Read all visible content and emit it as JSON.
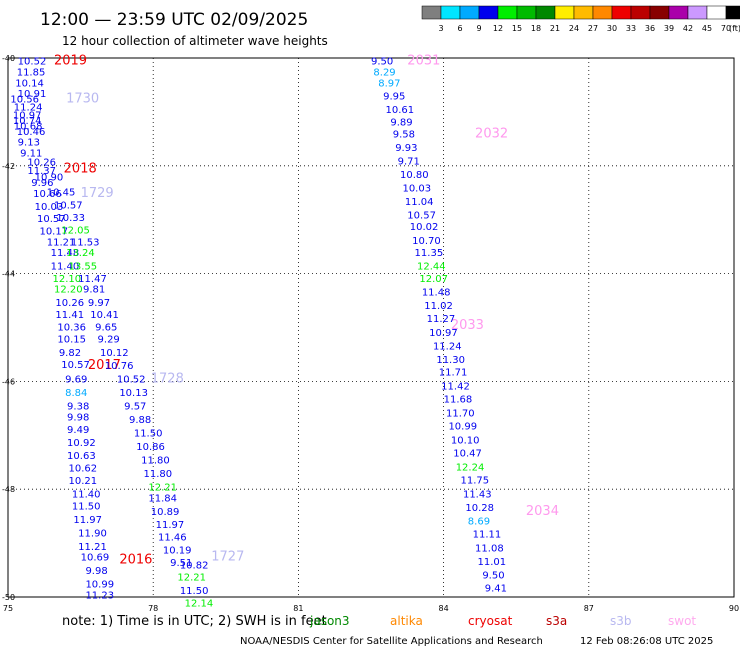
{
  "header": {
    "title": "12:00 — 23:59 UTC 02/09/2025",
    "subtitle": "12 hour collection of altimeter wave heights"
  },
  "colorbar": {
    "unit": "(ft)",
    "labels": [
      "3",
      "6",
      "9",
      "12",
      "15",
      "18",
      "21",
      "24",
      "27",
      "30",
      "33",
      "36",
      "39",
      "42",
      "45",
      "70"
    ],
    "colors": [
      "#7f7f7f",
      "#00e5ff",
      "#00aaff",
      "#0000ee",
      "#00ee00",
      "#00bb00",
      "#008800",
      "#ffee00",
      "#ffbb00",
      "#ff8800",
      "#ee0000",
      "#bb0000",
      "#880000",
      "#aa00aa",
      "#cc99ff",
      "#ffffff",
      "#000000"
    ]
  },
  "footer": {
    "note": "note:  1) Time is in UTC; 2) SWH is in feet",
    "satellites": [
      {
        "name": "jason3",
        "color": "#008800"
      },
      {
        "name": "altika",
        "color": "#ff8800"
      },
      {
        "name": "cryosat",
        "color": "#ee0000"
      },
      {
        "name": "s3a",
        "color": "#bb0000"
      },
      {
        "name": "s3b",
        "color": "#b8b8f0"
      },
      {
        "name": "swot",
        "color": "#ffaaee"
      }
    ],
    "credit": "NOAA/NESDIS Center for Satellite Applications and Research",
    "timestamp": "12 Feb 08:26:08 UTC 2025"
  },
  "chart_data": {
    "type": "scatter",
    "xlim": [
      75,
      90
    ],
    "ylim": [
      -50,
      -40
    ],
    "x_ticks": [
      75,
      78,
      81,
      84,
      87,
      90
    ],
    "y_ticks": [
      -40,
      -42,
      -44,
      -46,
      -48,
      -50
    ],
    "x_tick_labels": [
      "75",
      "78",
      "81",
      "84",
      "87",
      "90"
    ],
    "y_tick_labels": [
      "-40",
      "-42",
      "-44",
      "-46",
      "-48",
      "-50"
    ],
    "grid": true,
    "track_labels": [
      {
        "text": "2019",
        "x": 75.95,
        "y": -40.05,
        "color": "#ee0000"
      },
      {
        "text": "1730",
        "x": 76.2,
        "y": -40.75,
        "color": "#b8b8f0"
      },
      {
        "text": "2018",
        "x": 76.15,
        "y": -42.05,
        "color": "#ee0000"
      },
      {
        "text": "1729",
        "x": 76.5,
        "y": -42.5,
        "color": "#b8b8f0"
      },
      {
        "text": "2017",
        "x": 76.65,
        "y": -45.7,
        "color": "#ee0000"
      },
      {
        "text": "1728",
        "x": 77.95,
        "y": -45.95,
        "color": "#b8b8f0"
      },
      {
        "text": "2016",
        "x": 77.3,
        "y": -49.3,
        "color": "#ee0000"
      },
      {
        "text": "1727",
        "x": 79.2,
        "y": -49.25,
        "color": "#b8b8f0"
      },
      {
        "text": "2031",
        "x": 83.25,
        "y": -40.05,
        "color": "#ff99ee"
      },
      {
        "text": "2032",
        "x": 84.65,
        "y": -41.4,
        "color": "#ff99ee"
      },
      {
        "text": "2033",
        "x": 84.15,
        "y": -44.95,
        "color": "#ff99ee"
      },
      {
        "text": "2034",
        "x": 85.7,
        "y": -48.4,
        "color": "#ff99ee"
      }
    ],
    "points": [
      {
        "x": 75.2,
        "y": -40.05,
        "v": "10.52",
        "c": "#0000ee"
      },
      {
        "x": 75.18,
        "y": -40.25,
        "v": "11.85",
        "c": "#0000ee"
      },
      {
        "x": 75.15,
        "y": -40.45,
        "v": "10.14",
        "c": "#0000ee"
      },
      {
        "x": 75.2,
        "y": -40.65,
        "v": "10.91",
        "c": "#0000ee"
      },
      {
        "x": 75.05,
        "y": -40.75,
        "v": "10.56",
        "c": "#0000ee"
      },
      {
        "x": 75.12,
        "y": -40.9,
        "v": "11.24",
        "c": "#0000ee"
      },
      {
        "x": 75.1,
        "y": -41.05,
        "v": "10.97",
        "c": "#0000ee"
      },
      {
        "x": 75.1,
        "y": -41.15,
        "v": "10.74",
        "c": "#0000ee"
      },
      {
        "x": 75.12,
        "y": -41.25,
        "v": "10.68",
        "c": "#0000ee"
      },
      {
        "x": 75.18,
        "y": -41.35,
        "v": "10.46",
        "c": "#0000ee"
      },
      {
        "x": 75.2,
        "y": -41.55,
        "v": "9.13",
        "c": "#0000ee"
      },
      {
        "x": 75.25,
        "y": -41.75,
        "v": "9.11",
        "c": "#0000ee"
      },
      {
        "x": 75.4,
        "y": -41.92,
        "v": "10.26",
        "c": "#0000ee"
      },
      {
        "x": 75.4,
        "y": -42.08,
        "v": "11.37",
        "c": "#0000ee"
      },
      {
        "x": 75.55,
        "y": -42.2,
        "v": "10.90",
        "c": "#0000ee"
      },
      {
        "x": 75.48,
        "y": -42.3,
        "v": "9.96",
        "c": "#0000ee"
      },
      {
        "x": 75.52,
        "y": -42.5,
        "v": "10.66",
        "c": "#0000ee"
      },
      {
        "x": 75.8,
        "y": -42.48,
        "v": "10.45",
        "c": "#0000ee"
      },
      {
        "x": 75.55,
        "y": -42.75,
        "v": "10.03",
        "c": "#0000ee"
      },
      {
        "x": 75.95,
        "y": -42.72,
        "v": "10.57",
        "c": "#0000ee"
      },
      {
        "x": 75.6,
        "y": -42.97,
        "v": "10.57",
        "c": "#0000ee"
      },
      {
        "x": 76.0,
        "y": -42.95,
        "v": "10.33",
        "c": "#0000ee"
      },
      {
        "x": 75.65,
        "y": -43.2,
        "v": "10.17",
        "c": "#0000ee"
      },
      {
        "x": 76.1,
        "y": -43.18,
        "v": "12.05",
        "c": "#00ee00"
      },
      {
        "x": 75.8,
        "y": -43.4,
        "v": "11.21",
        "c": "#0000ee"
      },
      {
        "x": 76.3,
        "y": -43.4,
        "v": "11.53",
        "c": "#0000ee"
      },
      {
        "x": 75.88,
        "y": -43.6,
        "v": "11.48",
        "c": "#0000ee"
      },
      {
        "x": 76.2,
        "y": -43.6,
        "v": "13.24",
        "c": "#00ee00"
      },
      {
        "x": 75.88,
        "y": -43.85,
        "v": "11.40",
        "c": "#0000ee"
      },
      {
        "x": 76.25,
        "y": -43.85,
        "v": "13.55",
        "c": "#00ee00"
      },
      {
        "x": 75.92,
        "y": -44.08,
        "v": "12.10",
        "c": "#00ee00"
      },
      {
        "x": 76.45,
        "y": -44.08,
        "v": "11.47",
        "c": "#0000ee"
      },
      {
        "x": 75.95,
        "y": -44.28,
        "v": "12.20",
        "c": "#00ee00"
      },
      {
        "x": 76.55,
        "y": -44.28,
        "v": "9.81",
        "c": "#0000ee"
      },
      {
        "x": 75.98,
        "y": -44.53,
        "v": "10.26",
        "c": "#0000ee"
      },
      {
        "x": 76.65,
        "y": -44.53,
        "v": "9.97",
        "c": "#0000ee"
      },
      {
        "x": 75.98,
        "y": -44.75,
        "v": "11.41",
        "c": "#0000ee"
      },
      {
        "x": 76.7,
        "y": -44.75,
        "v": "10.41",
        "c": "#0000ee"
      },
      {
        "x": 76.02,
        "y": -44.98,
        "v": "10.36",
        "c": "#0000ee"
      },
      {
        "x": 76.8,
        "y": -44.98,
        "v": "9.65",
        "c": "#0000ee"
      },
      {
        "x": 76.02,
        "y": -45.2,
        "v": "10.15",
        "c": "#0000ee"
      },
      {
        "x": 76.85,
        "y": -45.2,
        "v": "9.29",
        "c": "#0000ee"
      },
      {
        "x": 76.05,
        "y": -45.45,
        "v": "9.82",
        "c": "#0000ee"
      },
      {
        "x": 76.9,
        "y": -45.45,
        "v": "10.12",
        "c": "#0000ee"
      },
      {
        "x": 76.1,
        "y": -45.68,
        "v": "10.57",
        "c": "#0000ee"
      },
      {
        "x": 77.0,
        "y": -45.7,
        "v": "10.76",
        "c": "#0000ee"
      },
      {
        "x": 76.18,
        "y": -45.95,
        "v": "9.69",
        "c": "#0000ee"
      },
      {
        "x": 77.25,
        "y": -45.95,
        "v": "10.52",
        "c": "#0000ee"
      },
      {
        "x": 76.18,
        "y": -46.2,
        "v": "8.84",
        "c": "#00aaff"
      },
      {
        "x": 77.3,
        "y": -46.2,
        "v": "10.13",
        "c": "#0000ee"
      },
      {
        "x": 76.22,
        "y": -46.45,
        "v": "9.38",
        "c": "#0000ee"
      },
      {
        "x": 77.4,
        "y": -46.45,
        "v": "9.57",
        "c": "#0000ee"
      },
      {
        "x": 76.22,
        "y": -46.65,
        "v": "9.98",
        "c": "#0000ee"
      },
      {
        "x": 77.5,
        "y": -46.7,
        "v": "9.88",
        "c": "#0000ee"
      },
      {
        "x": 76.22,
        "y": -46.88,
        "v": "9.49",
        "c": "#0000ee"
      },
      {
        "x": 77.6,
        "y": -46.95,
        "v": "11.50",
        "c": "#0000ee"
      },
      {
        "x": 76.22,
        "y": -47.12,
        "v": "10.92",
        "c": "#0000ee"
      },
      {
        "x": 77.65,
        "y": -47.2,
        "v": "10.86",
        "c": "#0000ee"
      },
      {
        "x": 76.22,
        "y": -47.37,
        "v": "10.63",
        "c": "#0000ee"
      },
      {
        "x": 77.75,
        "y": -47.45,
        "v": "11.80",
        "c": "#0000ee"
      },
      {
        "x": 76.25,
        "y": -47.6,
        "v": "10.62",
        "c": "#0000ee"
      },
      {
        "x": 77.8,
        "y": -47.7,
        "v": "11.80",
        "c": "#0000ee"
      },
      {
        "x": 76.25,
        "y": -47.83,
        "v": "10.21",
        "c": "#0000ee"
      },
      {
        "x": 77.9,
        "y": -47.95,
        "v": "12.21",
        "c": "#00ee00"
      },
      {
        "x": 76.32,
        "y": -48.08,
        "v": "11.40",
        "c": "#0000ee"
      },
      {
        "x": 77.9,
        "y": -48.15,
        "v": "11.84",
        "c": "#0000ee"
      },
      {
        "x": 76.32,
        "y": -48.3,
        "v": "11.50",
        "c": "#0000ee"
      },
      {
        "x": 77.95,
        "y": -48.4,
        "v": "10.89",
        "c": "#0000ee"
      },
      {
        "x": 76.35,
        "y": -48.55,
        "v": "11.97",
        "c": "#0000ee"
      },
      {
        "x": 78.05,
        "y": -48.65,
        "v": "11.97",
        "c": "#0000ee"
      },
      {
        "x": 76.45,
        "y": -48.8,
        "v": "11.90",
        "c": "#0000ee"
      },
      {
        "x": 78.1,
        "y": -48.88,
        "v": "11.46",
        "c": "#0000ee"
      },
      {
        "x": 76.45,
        "y": -49.05,
        "v": "11.21",
        "c": "#0000ee"
      },
      {
        "x": 78.2,
        "y": -49.12,
        "v": "10.19",
        "c": "#0000ee"
      },
      {
        "x": 76.5,
        "y": -49.25,
        "v": "10.69",
        "c": "#0000ee"
      },
      {
        "x": 78.35,
        "y": -49.35,
        "v": "9.51",
        "c": "#0000ee"
      },
      {
        "x": 78.55,
        "y": -49.4,
        "v": "10.82",
        "c": "#0000ee"
      },
      {
        "x": 76.6,
        "y": -49.5,
        "v": "9.98",
        "c": "#0000ee"
      },
      {
        "x": 78.5,
        "y": -49.62,
        "v": "12.21",
        "c": "#00ee00"
      },
      {
        "x": 76.6,
        "y": -49.75,
        "v": "10.99",
        "c": "#0000ee"
      },
      {
        "x": 78.55,
        "y": -49.87,
        "v": "11.50",
        "c": "#0000ee"
      },
      {
        "x": 76.6,
        "y": -49.95,
        "v": "11.23",
        "c": "#0000ee"
      },
      {
        "x": 78.65,
        "y": -50.1,
        "v": "12.14",
        "c": "#00ee00"
      },
      {
        "x": 82.5,
        "y": -40.05,
        "v": "9.50",
        "c": "#0000ee"
      },
      {
        "x": 82.55,
        "y": -40.25,
        "v": "8.29",
        "c": "#00aaff"
      },
      {
        "x": 82.65,
        "y": -40.45,
        "v": "8.97",
        "c": "#00aaff"
      },
      {
        "x": 82.75,
        "y": -40.7,
        "v": "9.95",
        "c": "#0000ee"
      },
      {
        "x": 82.8,
        "y": -40.95,
        "v": "10.61",
        "c": "#0000ee"
      },
      {
        "x": 82.9,
        "y": -41.18,
        "v": "9.89",
        "c": "#0000ee"
      },
      {
        "x": 82.95,
        "y": -41.4,
        "v": "9.58",
        "c": "#0000ee"
      },
      {
        "x": 83.0,
        "y": -41.65,
        "v": "9.93",
        "c": "#0000ee"
      },
      {
        "x": 83.05,
        "y": -41.9,
        "v": "9.71",
        "c": "#0000ee"
      },
      {
        "x": 83.1,
        "y": -42.15,
        "v": "10.80",
        "c": "#0000ee"
      },
      {
        "x": 83.15,
        "y": -42.4,
        "v": "10.03",
        "c": "#0000ee"
      },
      {
        "x": 83.2,
        "y": -42.65,
        "v": "11.04",
        "c": "#0000ee"
      },
      {
        "x": 83.25,
        "y": -42.9,
        "v": "10.57",
        "c": "#0000ee"
      },
      {
        "x": 83.3,
        "y": -43.12,
        "v": "10.02",
        "c": "#0000ee"
      },
      {
        "x": 83.35,
        "y": -43.38,
        "v": "10.70",
        "c": "#0000ee"
      },
      {
        "x": 83.4,
        "y": -43.6,
        "v": "11.35",
        "c": "#0000ee"
      },
      {
        "x": 83.45,
        "y": -43.85,
        "v": "12.44",
        "c": "#00ee00"
      },
      {
        "x": 83.5,
        "y": -44.08,
        "v": "12.07",
        "c": "#00ee00"
      },
      {
        "x": 83.55,
        "y": -44.33,
        "v": "11.48",
        "c": "#0000ee"
      },
      {
        "x": 83.6,
        "y": -44.58,
        "v": "11.02",
        "c": "#0000ee"
      },
      {
        "x": 83.65,
        "y": -44.82,
        "v": "11.27",
        "c": "#0000ee"
      },
      {
        "x": 83.7,
        "y": -45.08,
        "v": "10.97",
        "c": "#0000ee"
      },
      {
        "x": 83.78,
        "y": -45.33,
        "v": "11.24",
        "c": "#0000ee"
      },
      {
        "x": 83.85,
        "y": -45.58,
        "v": "11.30",
        "c": "#0000ee"
      },
      {
        "x": 83.9,
        "y": -45.82,
        "v": "11.71",
        "c": "#0000ee"
      },
      {
        "x": 83.95,
        "y": -46.08,
        "v": "11.42",
        "c": "#0000ee"
      },
      {
        "x": 84.0,
        "y": -46.32,
        "v": "11.68",
        "c": "#0000ee"
      },
      {
        "x": 84.05,
        "y": -46.58,
        "v": "11.70",
        "c": "#0000ee"
      },
      {
        "x": 84.1,
        "y": -46.82,
        "v": "10.99",
        "c": "#0000ee"
      },
      {
        "x": 84.15,
        "y": -47.08,
        "v": "10.10",
        "c": "#0000ee"
      },
      {
        "x": 84.2,
        "y": -47.32,
        "v": "10.47",
        "c": "#0000ee"
      },
      {
        "x": 84.25,
        "y": -47.58,
        "v": "12.24",
        "c": "#00ee00"
      },
      {
        "x": 84.35,
        "y": -47.82,
        "v": "11.75",
        "c": "#0000ee"
      },
      {
        "x": 84.4,
        "y": -48.08,
        "v": "11.43",
        "c": "#0000ee"
      },
      {
        "x": 84.45,
        "y": -48.33,
        "v": "10.28",
        "c": "#0000ee"
      },
      {
        "x": 84.5,
        "y": -48.58,
        "v": "8.69",
        "c": "#00aaff"
      },
      {
        "x": 84.6,
        "y": -48.82,
        "v": "11.11",
        "c": "#0000ee"
      },
      {
        "x": 84.65,
        "y": -49.08,
        "v": "11.08",
        "c": "#0000ee"
      },
      {
        "x": 84.7,
        "y": -49.33,
        "v": "11.01",
        "c": "#0000ee"
      },
      {
        "x": 84.8,
        "y": -49.58,
        "v": "9.50",
        "c": "#0000ee"
      },
      {
        "x": 84.85,
        "y": -49.82,
        "v": "9.41",
        "c": "#0000ee"
      }
    ]
  }
}
